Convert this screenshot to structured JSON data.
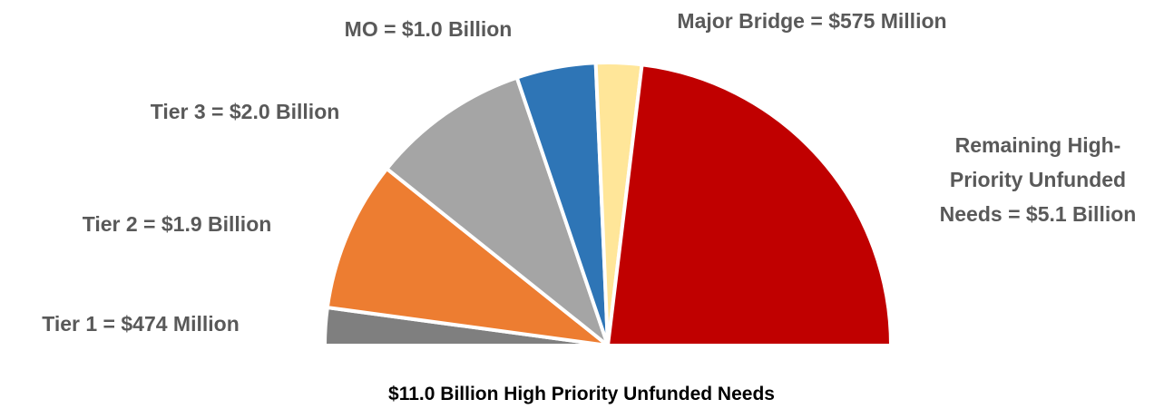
{
  "chart_data": {
    "type": "pie",
    "style": "half-donut (semicircle)",
    "title": "$11.0 Billion High Priority Unfunded Needs",
    "unit": "Billion USD",
    "slices": [
      {
        "label_lines": [
          "Tier 1 = $474 Million"
        ],
        "value": 0.474,
        "color": "#7f7f7f"
      },
      {
        "label_lines": [
          "Tier 2 = $1.9 Billion"
        ],
        "value": 1.9,
        "color": "#ed7d31"
      },
      {
        "label_lines": [
          "Tier 3 = $2.0 Billion"
        ],
        "value": 2.0,
        "color": "#a5a5a5"
      },
      {
        "label_lines": [
          "MO = $1.0 Billion"
        ],
        "value": 1.0,
        "color": "#2e75b6"
      },
      {
        "label_lines": [
          "Major Bridge = $575 Million"
        ],
        "value": 0.575,
        "color": "#ffe699"
      },
      {
        "label_lines": [
          "Remaining High-",
          "Priority Unfunded",
          "Needs = $5.1 Billion"
        ],
        "value": 5.1,
        "color": "#c00000"
      }
    ],
    "legend": "none"
  }
}
